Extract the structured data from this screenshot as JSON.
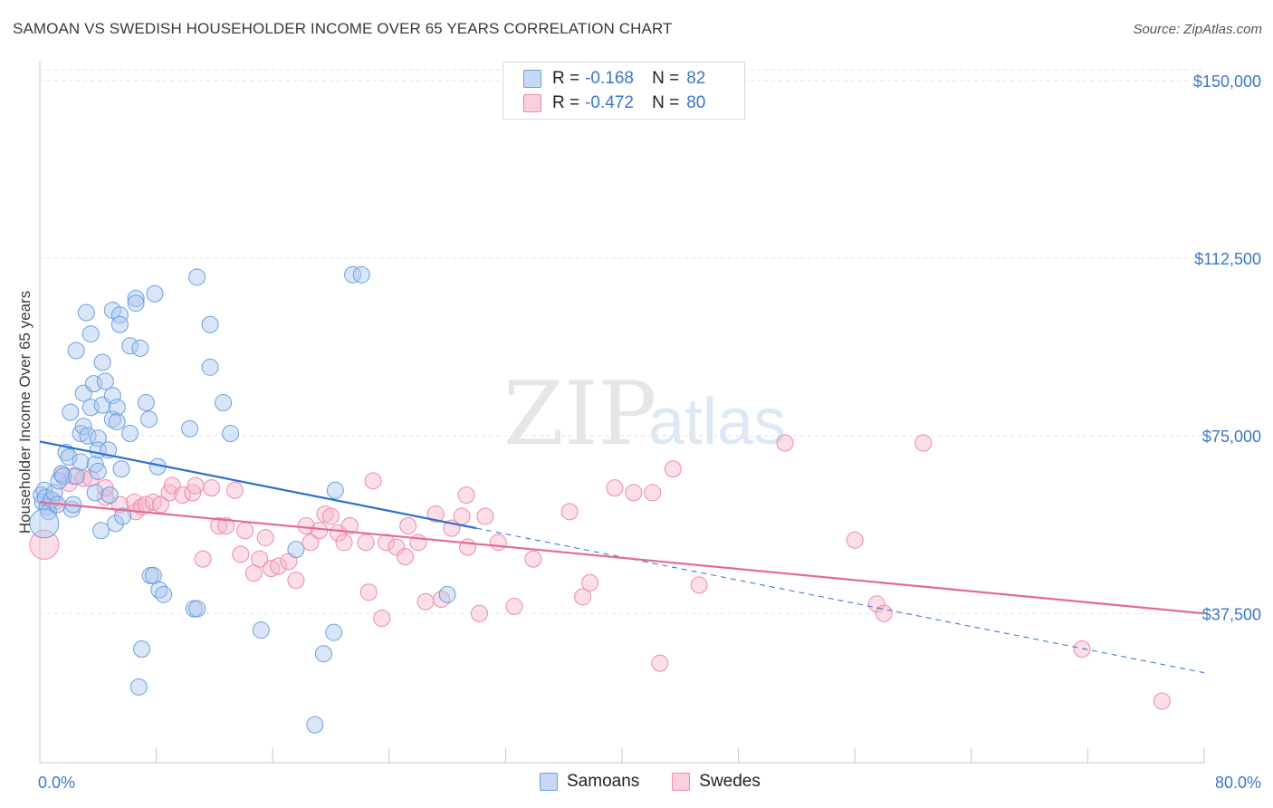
{
  "header": {
    "title": "SAMOAN VS SWEDISH HOUSEHOLDER INCOME OVER 65 YEARS CORRELATION CHART",
    "source": "Source: ZipAtlas.com"
  },
  "watermark": {
    "zip": "ZIP",
    "atlas": "atlas"
  },
  "legend": {
    "rows": [
      {
        "r_label": "R =",
        "r_value": "-0.168",
        "n_label": "N =",
        "n_value": "82",
        "color": "#aac8f0"
      },
      {
        "r_label": "R =",
        "r_value": "-0.472",
        "n_label": "N =",
        "n_value": "80",
        "color": "#f6b6cb"
      }
    ]
  },
  "bottom_legend": {
    "samoans": "Samoans",
    "swedes": "Swedes"
  },
  "chart_data": {
    "type": "scatter",
    "ylabel": "Householder Income Over 65 years",
    "xlabel": "",
    "xlim": [
      0,
      80
    ],
    "ylim": [
      6000,
      154000
    ],
    "x_tick_labels": [
      {
        "x": 0,
        "label": "0.0%"
      },
      {
        "x": 80,
        "label": "80.0%"
      }
    ],
    "x_minor_ticks": [
      0,
      8,
      16,
      24,
      32,
      40,
      48,
      56,
      64,
      72,
      80
    ],
    "y_ticks": [
      {
        "y": 150000,
        "label": "$150,000"
      },
      {
        "y": 112500,
        "label": "$112,500"
      },
      {
        "y": 75000,
        "label": "$75,000"
      },
      {
        "y": 37500,
        "label": "$37,500"
      }
    ],
    "grid": true,
    "legend_position": "top-center",
    "series": [
      {
        "name": "Samoans",
        "color": "#6a9fe0",
        "fill": "#aac8f0",
        "trend": {
          "x0": 0,
          "y0": 73800,
          "x1": 30,
          "y1": 55500,
          "dash_to_x": 80,
          "dash_to_y": 25000,
          "color": "#2b6fd1"
        },
        "points": [
          [
            0.1,
            62500
          ],
          [
            0.2,
            61000
          ],
          [
            0.3,
            63500
          ],
          [
            0.4,
            62000
          ],
          [
            0.5,
            60000
          ],
          [
            0.6,
            59000
          ],
          [
            0.8,
            61500
          ],
          [
            1,
            63000
          ],
          [
            1.2,
            60500
          ],
          [
            1.3,
            65500
          ],
          [
            1.5,
            67000
          ],
          [
            1.6,
            66500
          ],
          [
            1.8,
            71500
          ],
          [
            2,
            70500
          ],
          [
            2.2,
            59500
          ],
          [
            2.3,
            60500
          ],
          [
            2.5,
            66500
          ],
          [
            2.8,
            69500
          ],
          [
            2.1,
            80000
          ],
          [
            2.5,
            93000
          ],
          [
            2.8,
            75500
          ],
          [
            3,
            77000
          ],
          [
            3,
            84000
          ],
          [
            3.2,
            101000
          ],
          [
            3.3,
            75000
          ],
          [
            3.5,
            81000
          ],
          [
            3.5,
            96500
          ],
          [
            3.7,
            86000
          ],
          [
            3.8,
            63000
          ],
          [
            3.8,
            69000
          ],
          [
            4,
            67500
          ],
          [
            4,
            74500
          ],
          [
            4,
            72000
          ],
          [
            4.2,
            55000
          ],
          [
            4.3,
            81500
          ],
          [
            4.3,
            90500
          ],
          [
            4.5,
            86500
          ],
          [
            4.7,
            72000
          ],
          [
            4.8,
            62500
          ],
          [
            5,
            101500
          ],
          [
            5,
            83500
          ],
          [
            5,
            78500
          ],
          [
            5.2,
            56500
          ],
          [
            5.3,
            81000
          ],
          [
            5.3,
            78000
          ],
          [
            5.5,
            100500
          ],
          [
            5.5,
            98500
          ],
          [
            5.6,
            68000
          ],
          [
            5.7,
            58000
          ],
          [
            6.2,
            94000
          ],
          [
            6.2,
            75500
          ],
          [
            6.6,
            104000
          ],
          [
            6.6,
            103000
          ],
          [
            6.9,
            93500
          ],
          [
            7.3,
            82000
          ],
          [
            7.5,
            78500
          ],
          [
            7.6,
            45500
          ],
          [
            7.8,
            45500
          ],
          [
            7.9,
            105000
          ],
          [
            8.1,
            68500
          ],
          [
            8.2,
            42500
          ],
          [
            8.5,
            41500
          ],
          [
            10.3,
            76500
          ],
          [
            10.6,
            38500
          ],
          [
            10.8,
            38500
          ],
          [
            10.8,
            108500
          ],
          [
            11.7,
            89500
          ],
          [
            11.7,
            98500
          ],
          [
            12.6,
            82000
          ],
          [
            13.1,
            75500
          ],
          [
            15.2,
            34000
          ],
          [
            17.6,
            51000
          ],
          [
            18.9,
            14000
          ],
          [
            19.5,
            29000
          ],
          [
            20.2,
            33500
          ],
          [
            20.3,
            63500
          ],
          [
            21.5,
            109000
          ],
          [
            22.1,
            109000
          ],
          [
            28,
            41500
          ],
          [
            6.8,
            22000
          ],
          [
            7,
            30000
          ],
          [
            0.3,
            56500
          ]
        ]
      },
      {
        "name": "Swedes",
        "color": "#ee8aaa",
        "fill": "#f6b6cb",
        "trend": {
          "x0": 0,
          "y0": 61000,
          "x1": 80,
          "y1": 37500,
          "color": "#e56a93"
        },
        "points": [
          [
            0.3,
            52000
          ],
          [
            1,
            61000
          ],
          [
            1.5,
            67000
          ],
          [
            2,
            65000
          ],
          [
            2.3,
            66500
          ],
          [
            3,
            66000
          ],
          [
            3.5,
            66000
          ],
          [
            4.5,
            62000
          ],
          [
            4.5,
            64000
          ],
          [
            5.5,
            60500
          ],
          [
            6.5,
            61000
          ],
          [
            6.6,
            59000
          ],
          [
            7,
            60000
          ],
          [
            7.3,
            60500
          ],
          [
            7.8,
            61000
          ],
          [
            8.3,
            60500
          ],
          [
            8.9,
            63000
          ],
          [
            9.1,
            64500
          ],
          [
            9.8,
            62500
          ],
          [
            10.5,
            63000
          ],
          [
            10.7,
            64500
          ],
          [
            11.2,
            49000
          ],
          [
            11.8,
            64000
          ],
          [
            12.3,
            56000
          ],
          [
            12.8,
            56000
          ],
          [
            13.4,
            63500
          ],
          [
            13.8,
            50000
          ],
          [
            14.1,
            55000
          ],
          [
            14.7,
            46000
          ],
          [
            15.1,
            49000
          ],
          [
            15.5,
            53500
          ],
          [
            15.9,
            47000
          ],
          [
            16.4,
            47500
          ],
          [
            17.1,
            48500
          ],
          [
            17.6,
            44500
          ],
          [
            18.3,
            56000
          ],
          [
            18.6,
            52500
          ],
          [
            19.2,
            55000
          ],
          [
            19.6,
            58500
          ],
          [
            20,
            58000
          ],
          [
            20.5,
            54500
          ],
          [
            20.9,
            52500
          ],
          [
            21.3,
            56000
          ],
          [
            22.4,
            52500
          ],
          [
            22.6,
            42000
          ],
          [
            22.9,
            65500
          ],
          [
            23.5,
            36500
          ],
          [
            23.8,
            52500
          ],
          [
            24.5,
            51500
          ],
          [
            25.1,
            49500
          ],
          [
            25.3,
            56000
          ],
          [
            26,
            52500
          ],
          [
            26.5,
            40000
          ],
          [
            27.2,
            58500
          ],
          [
            27.6,
            40500
          ],
          [
            28.3,
            55500
          ],
          [
            29,
            58000
          ],
          [
            29.3,
            62500
          ],
          [
            30.2,
            37500
          ],
          [
            30.6,
            58000
          ],
          [
            31.5,
            52500
          ],
          [
            32.6,
            39000
          ],
          [
            33.9,
            49000
          ],
          [
            36.4,
            59000
          ],
          [
            37.3,
            41000
          ],
          [
            37.8,
            44000
          ],
          [
            39.5,
            64000
          ],
          [
            40.8,
            63000
          ],
          [
            42.1,
            63000
          ],
          [
            42.6,
            27000
          ],
          [
            43.5,
            68000
          ],
          [
            45.3,
            43500
          ],
          [
            51.2,
            73500
          ],
          [
            56,
            53000
          ],
          [
            57.5,
            39500
          ],
          [
            58,
            37500
          ],
          [
            60.7,
            73500
          ],
          [
            71.6,
            30000
          ],
          [
            77.1,
            19000
          ],
          [
            29.4,
            51500
          ]
        ]
      }
    ]
  }
}
